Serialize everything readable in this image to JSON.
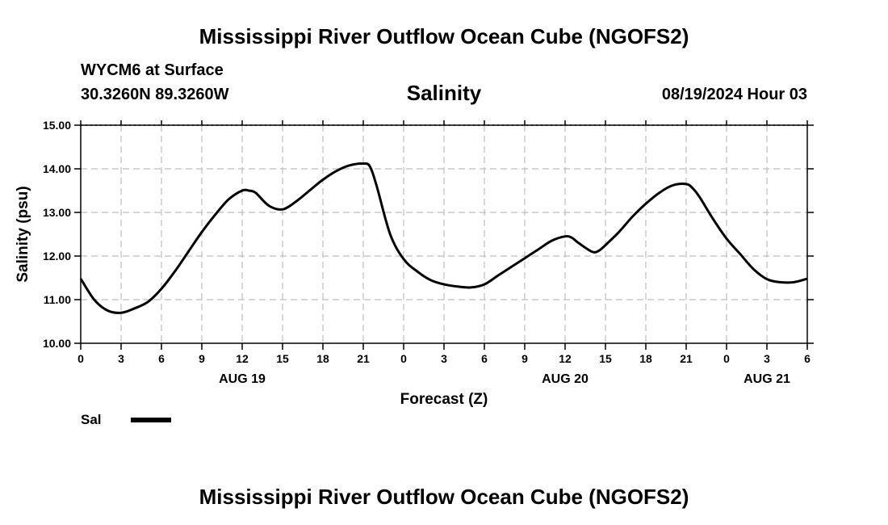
{
  "chart_data": {
    "type": "line",
    "title": "Salinity",
    "header": {
      "main_title": "Mississippi River Outflow Ocean Cube (NGOFS2)",
      "station": "WYCM6 at Surface",
      "coords": "30.3260N  89.3260W",
      "timestamp": "08/19/2024 Hour 03",
      "footer_title": "Mississippi River Outflow Ocean Cube (NGOFS2)"
    },
    "xlabel": "Forecast (Z)",
    "ylabel": "Salinity (psu)",
    "xlim": [
      0,
      54
    ],
    "ylim": [
      10,
      15
    ],
    "x_ticks": [
      0,
      3,
      6,
      9,
      12,
      15,
      18,
      21,
      24,
      27,
      30,
      33,
      36,
      39,
      42,
      45,
      48,
      51,
      54
    ],
    "x_tick_labels": [
      "0",
      "3",
      "6",
      "9",
      "12",
      "15",
      "18",
      "21",
      "0",
      "3",
      "6",
      "9",
      "12",
      "15",
      "18",
      "21",
      "0",
      "3",
      "6"
    ],
    "y_ticks": [
      10,
      11,
      12,
      13,
      14,
      15
    ],
    "y_tick_labels": [
      "10.00",
      "11.00",
      "12.00",
      "13.00",
      "14.00",
      "15.00"
    ],
    "date_labels": [
      {
        "x": 12,
        "label": "AUG 19"
      },
      {
        "x": 36,
        "label": "AUG 20"
      },
      {
        "x": 51,
        "label": "AUG 21"
      }
    ],
    "grid": true,
    "legend": {
      "position": "bottom-left",
      "entries": [
        "Sal"
      ]
    },
    "series": [
      {
        "name": "Sal",
        "x": [
          0,
          1,
          2,
          3,
          4,
          5,
          6,
          7,
          8,
          9,
          10,
          11,
          12,
          12.5,
          13,
          14,
          15,
          16,
          17,
          18,
          19,
          20,
          21,
          21.5,
          22,
          23,
          24,
          25,
          26,
          27,
          28,
          29,
          30,
          31,
          32,
          33,
          34,
          35,
          36,
          36.5,
          37,
          38,
          38.5,
          39,
          40,
          41,
          42,
          43,
          44,
          45,
          45.5,
          46,
          47,
          48,
          49,
          50,
          51,
          52,
          53,
          54
        ],
        "values": [
          11.48,
          11.0,
          10.75,
          10.7,
          10.8,
          10.95,
          11.25,
          11.65,
          12.1,
          12.55,
          12.95,
          13.3,
          13.5,
          13.5,
          13.45,
          13.15,
          13.07,
          13.25,
          13.5,
          13.75,
          13.95,
          14.08,
          14.12,
          14.05,
          13.6,
          12.5,
          11.93,
          11.65,
          11.45,
          11.35,
          11.3,
          11.28,
          11.35,
          11.55,
          11.75,
          11.95,
          12.15,
          12.35,
          12.45,
          12.42,
          12.3,
          12.1,
          12.12,
          12.25,
          12.55,
          12.9,
          13.2,
          13.45,
          13.62,
          13.65,
          13.55,
          13.35,
          12.85,
          12.4,
          12.05,
          11.7,
          11.47,
          11.4,
          11.4,
          11.48
        ]
      }
    ]
  }
}
